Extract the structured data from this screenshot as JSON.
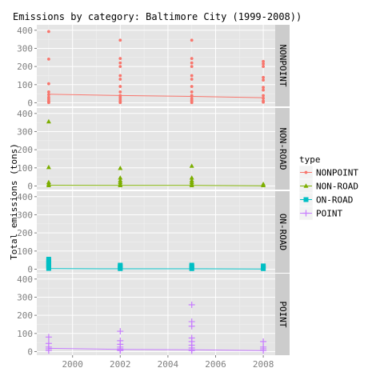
{
  "chart_data": {
    "type": "scatter",
    "title": "Emissions by category:  Baltimore City (1999-2008))",
    "ylabel": "Total emissions (tons)",
    "xlim": [
      1998.5,
      2008.5
    ],
    "ylim": [
      -20,
      430
    ],
    "x_ticks": [
      2000,
      2002,
      2004,
      2006,
      2008
    ],
    "y_ticks": [
      0,
      100,
      200,
      300,
      400
    ],
    "grid": true,
    "legend_position": "right",
    "legend_title": "type",
    "panels": [
      {
        "name": "NONPOINT",
        "color": "#F8766D",
        "marker": "dot",
        "points": [
          {
            "x": 1999,
            "y": 393
          },
          {
            "x": 1999,
            "y": 241
          },
          {
            "x": 1999,
            "y": 105
          },
          {
            "x": 1999,
            "y": 60
          },
          {
            "x": 1999,
            "y": 45
          },
          {
            "x": 1999,
            "y": 30
          },
          {
            "x": 1999,
            "y": 20
          },
          {
            "x": 1999,
            "y": 10
          },
          {
            "x": 1999,
            "y": 5
          },
          {
            "x": 1999,
            "y": 1
          },
          {
            "x": 2002,
            "y": 345
          },
          {
            "x": 2002,
            "y": 244
          },
          {
            "x": 2002,
            "y": 220
          },
          {
            "x": 2002,
            "y": 200
          },
          {
            "x": 2002,
            "y": 150
          },
          {
            "x": 2002,
            "y": 130
          },
          {
            "x": 2002,
            "y": 90
          },
          {
            "x": 2002,
            "y": 60
          },
          {
            "x": 2002,
            "y": 40
          },
          {
            "x": 2002,
            "y": 30
          },
          {
            "x": 2002,
            "y": 20
          },
          {
            "x": 2002,
            "y": 10
          },
          {
            "x": 2002,
            "y": 5
          },
          {
            "x": 2002,
            "y": 1
          },
          {
            "x": 2005,
            "y": 345
          },
          {
            "x": 2005,
            "y": 244
          },
          {
            "x": 2005,
            "y": 220
          },
          {
            "x": 2005,
            "y": 200
          },
          {
            "x": 2005,
            "y": 150
          },
          {
            "x": 2005,
            "y": 130
          },
          {
            "x": 2005,
            "y": 90
          },
          {
            "x": 2005,
            "y": 60
          },
          {
            "x": 2005,
            "y": 40
          },
          {
            "x": 2005,
            "y": 25
          },
          {
            "x": 2005,
            "y": 15
          },
          {
            "x": 2005,
            "y": 8
          },
          {
            "x": 2005,
            "y": 1
          },
          {
            "x": 2008,
            "y": 228
          },
          {
            "x": 2008,
            "y": 215
          },
          {
            "x": 2008,
            "y": 200
          },
          {
            "x": 2008,
            "y": 140
          },
          {
            "x": 2008,
            "y": 125
          },
          {
            "x": 2008,
            "y": 85
          },
          {
            "x": 2008,
            "y": 70
          },
          {
            "x": 2008,
            "y": 40
          },
          {
            "x": 2008,
            "y": 25
          },
          {
            "x": 2008,
            "y": 10
          },
          {
            "x": 2008,
            "y": 3
          }
        ],
        "trend": [
          {
            "x": 1999,
            "y": 47
          },
          {
            "x": 2002,
            "y": 40
          },
          {
            "x": 2005,
            "y": 35
          },
          {
            "x": 2008,
            "y": 28
          }
        ]
      },
      {
        "name": "NON-ROAD",
        "color": "#7CAE00",
        "marker": "triangle",
        "points": [
          {
            "x": 1999,
            "y": 355
          },
          {
            "x": 1999,
            "y": 103
          },
          {
            "x": 1999,
            "y": 20
          },
          {
            "x": 1999,
            "y": 10
          },
          {
            "x": 1999,
            "y": 3
          },
          {
            "x": 2002,
            "y": 98
          },
          {
            "x": 2002,
            "y": 45
          },
          {
            "x": 2002,
            "y": 30
          },
          {
            "x": 2002,
            "y": 20
          },
          {
            "x": 2002,
            "y": 10
          },
          {
            "x": 2002,
            "y": 3
          },
          {
            "x": 2005,
            "y": 110
          },
          {
            "x": 2005,
            "y": 45
          },
          {
            "x": 2005,
            "y": 30
          },
          {
            "x": 2005,
            "y": 20
          },
          {
            "x": 2005,
            "y": 10
          },
          {
            "x": 2005,
            "y": 3
          },
          {
            "x": 2008,
            "y": 10
          },
          {
            "x": 2008,
            "y": 3
          }
        ],
        "trend": [
          {
            "x": 1999,
            "y": 4
          },
          {
            "x": 2002,
            "y": 3
          },
          {
            "x": 2005,
            "y": 3
          },
          {
            "x": 2008,
            "y": 1
          }
        ]
      },
      {
        "name": "ON-ROAD",
        "color": "#00BFC4",
        "marker": "square",
        "points": [
          {
            "x": 1999,
            "y": 55
          },
          {
            "x": 1999,
            "y": 48
          },
          {
            "x": 1999,
            "y": 40
          },
          {
            "x": 1999,
            "y": 32
          },
          {
            "x": 1999,
            "y": 25
          },
          {
            "x": 1999,
            "y": 18
          },
          {
            "x": 1999,
            "y": 10
          },
          {
            "x": 1999,
            "y": 4
          },
          {
            "x": 2002,
            "y": 22
          },
          {
            "x": 2002,
            "y": 15
          },
          {
            "x": 2002,
            "y": 8
          },
          {
            "x": 2002,
            "y": 3
          },
          {
            "x": 2005,
            "y": 22
          },
          {
            "x": 2005,
            "y": 15
          },
          {
            "x": 2005,
            "y": 8
          },
          {
            "x": 2005,
            "y": 3
          },
          {
            "x": 2008,
            "y": 18
          },
          {
            "x": 2008,
            "y": 10
          },
          {
            "x": 2008,
            "y": 3
          }
        ],
        "trend": [
          {
            "x": 1999,
            "y": 3
          },
          {
            "x": 2002,
            "y": 2
          },
          {
            "x": 2005,
            "y": 2
          },
          {
            "x": 2008,
            "y": 1
          }
        ]
      },
      {
        "name": "POINT",
        "color": "#C77CFF",
        "marker": "plus",
        "points": [
          {
            "x": 1999,
            "y": 80
          },
          {
            "x": 1999,
            "y": 45
          },
          {
            "x": 1999,
            "y": 25
          },
          {
            "x": 1999,
            "y": 15
          },
          {
            "x": 1999,
            "y": 5
          },
          {
            "x": 2002,
            "y": 112
          },
          {
            "x": 2002,
            "y": 60
          },
          {
            "x": 2002,
            "y": 40
          },
          {
            "x": 2002,
            "y": 25
          },
          {
            "x": 2002,
            "y": 15
          },
          {
            "x": 2002,
            "y": 10
          },
          {
            "x": 2002,
            "y": 5
          },
          {
            "x": 2005,
            "y": 258
          },
          {
            "x": 2005,
            "y": 165
          },
          {
            "x": 2005,
            "y": 140
          },
          {
            "x": 2005,
            "y": 75
          },
          {
            "x": 2005,
            "y": 55
          },
          {
            "x": 2005,
            "y": 35
          },
          {
            "x": 2005,
            "y": 20
          },
          {
            "x": 2005,
            "y": 10
          },
          {
            "x": 2005,
            "y": 5
          },
          {
            "x": 2008,
            "y": 55
          },
          {
            "x": 2008,
            "y": 25
          },
          {
            "x": 2008,
            "y": 15
          },
          {
            "x": 2008,
            "y": 5
          }
        ],
        "trend": [
          {
            "x": 1999,
            "y": 18
          },
          {
            "x": 2002,
            "y": 12
          },
          {
            "x": 2005,
            "y": 10
          },
          {
            "x": 2008,
            "y": 5
          }
        ]
      }
    ]
  }
}
